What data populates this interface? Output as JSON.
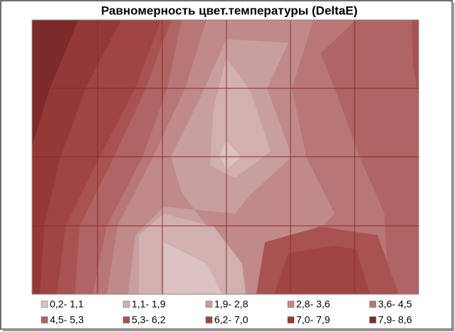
{
  "chart_data": {
    "type": "contour",
    "title": "Равномерность цвет.температуры (DeltaE)",
    "grid": true,
    "grid_color": "#8e2a2a",
    "series": [
      {
        "name": "0,2- 1,1",
        "color": "#dcc2c2"
      },
      {
        "name": "1,1- 1,9",
        "color": "#d2b0b0"
      },
      {
        "name": "1,9- 2,8",
        "color": "#c89e9e"
      },
      {
        "name": "2,8- 3,6",
        "color": "#c08a8a"
      },
      {
        "name": "3,6- 4,5",
        "color": "#b87676"
      },
      {
        "name": "4,5- 5,3",
        "color": "#b06464"
      },
      {
        "name": "5,3- 6,2",
        "color": "#a85252"
      },
      {
        "name": "6,2- 7,0",
        "color": "#a04444"
      },
      {
        "name": "7,0- 7,9",
        "color": "#953838"
      },
      {
        "name": "7,9- 8,6",
        "color": "#7c2a2a"
      }
    ]
  }
}
